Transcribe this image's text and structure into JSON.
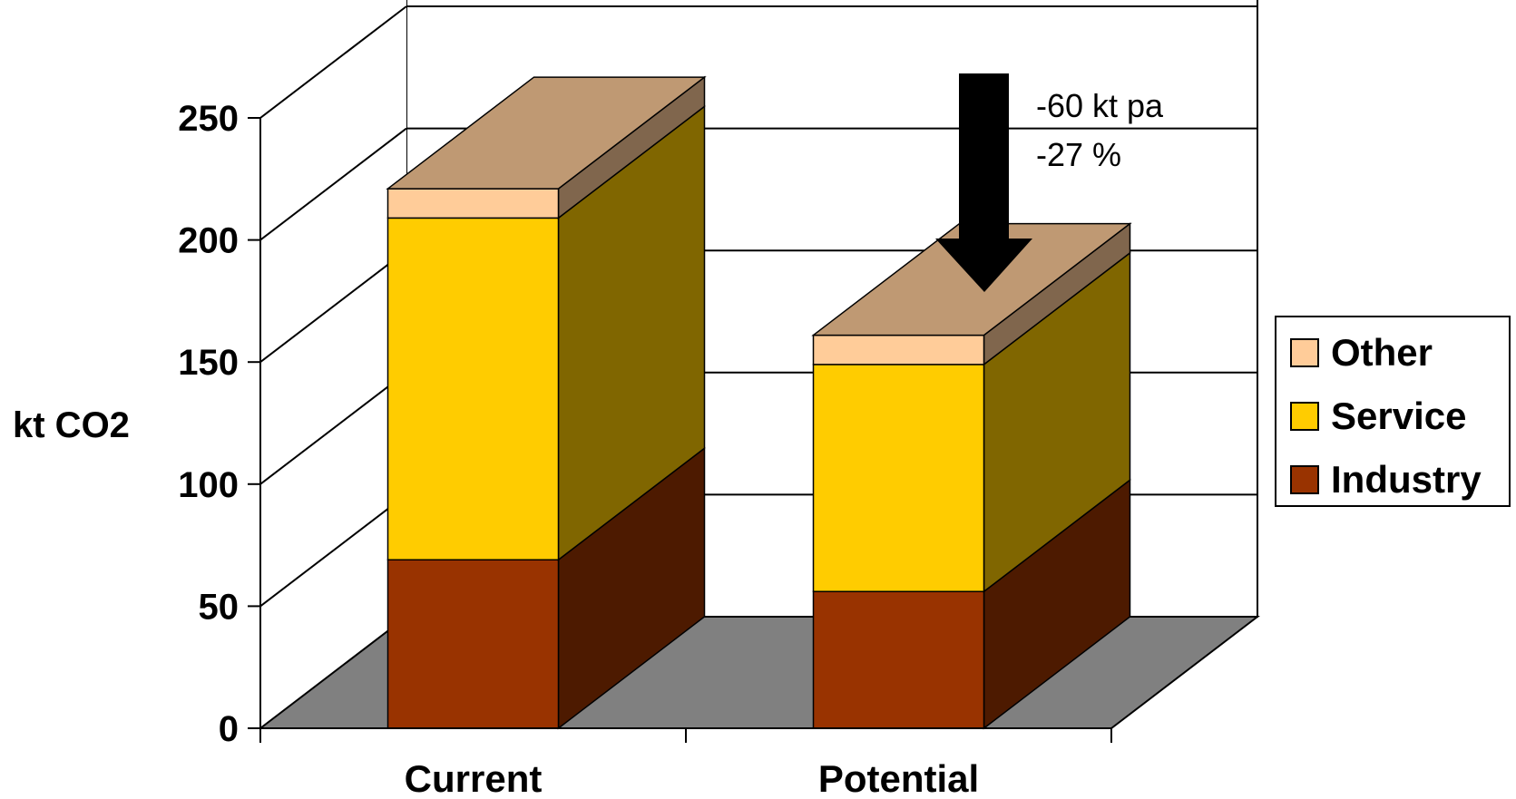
{
  "chart_data": {
    "type": "bar",
    "stacked": true,
    "three_d": true,
    "categories": [
      "Current",
      "Potential"
    ],
    "series": [
      {
        "name": "Industry",
        "values": [
          69,
          56
        ],
        "color": "#993300"
      },
      {
        "name": "Service",
        "values": [
          140,
          93
        ],
        "color": "#FFCC00"
      },
      {
        "name": "Other",
        "values": [
          12,
          12
        ],
        "color": "#FFCC99"
      }
    ],
    "ylabel": "kt CO2",
    "xlabel": "",
    "ylim": [
      0,
      250
    ],
    "yticks": [
      "0",
      "50",
      "100",
      "150",
      "200",
      "250"
    ],
    "grid": true,
    "legend_position": "right",
    "annotations": [
      "-60 kt pa",
      "-27 %"
    ],
    "colors": {
      "floor": "#808080",
      "grid": "#000000"
    }
  }
}
